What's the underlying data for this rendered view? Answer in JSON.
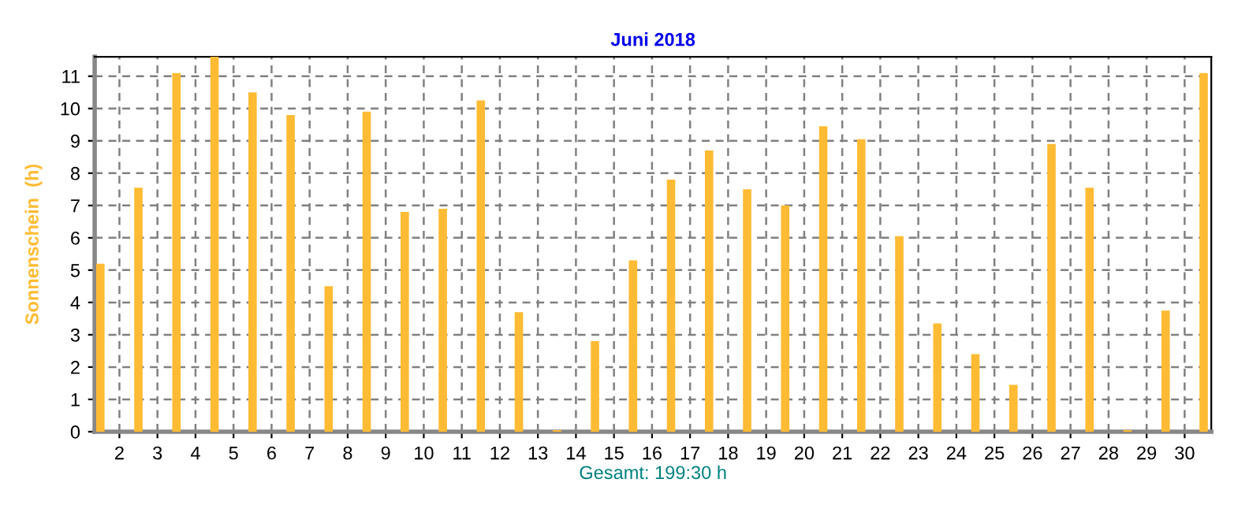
{
  "chart_data": {
    "type": "bar",
    "title": "Juni 2018",
    "ylabel": "Sonnenschein  (h)",
    "xlabel": "Gesamt: 199:30 h",
    "x": [
      1.5,
      2.5,
      3.5,
      4.5,
      5.5,
      6.5,
      7.5,
      8.5,
      9.5,
      10.5,
      11.5,
      12.5,
      13.5,
      14.5,
      15.5,
      16.5,
      17.5,
      18.5,
      19.5,
      20.5,
      21.5,
      22.5,
      23.5,
      24.5,
      25.5,
      26.5,
      27.5,
      28.5,
      29.5,
      30.5
    ],
    "values": [
      5.2,
      7.55,
      11.1,
      11.6,
      10.5,
      9.8,
      4.5,
      9.9,
      6.8,
      6.9,
      10.25,
      3.7,
      0.05,
      2.8,
      5.3,
      7.8,
      8.7,
      7.5,
      7.0,
      9.45,
      9.05,
      6.05,
      3.35,
      2.4,
      1.45,
      8.9,
      7.55,
      0.05,
      3.75,
      11.1
    ],
    "color": "#ffbb33",
    "xlim": [
      1.35,
      30.7
    ],
    "xticks": [
      2,
      3,
      4,
      5,
      6,
      7,
      8,
      9,
      10,
      11,
      12,
      13,
      14,
      15,
      16,
      17,
      18,
      19,
      20,
      21,
      22,
      23,
      24,
      25,
      26,
      27,
      28,
      29,
      30
    ],
    "ylim": [
      0,
      11.6
    ],
    "yticks": [
      0,
      1,
      2,
      3,
      4,
      5,
      6,
      7,
      8,
      9,
      10,
      11
    ],
    "grid": true,
    "legend": false
  }
}
